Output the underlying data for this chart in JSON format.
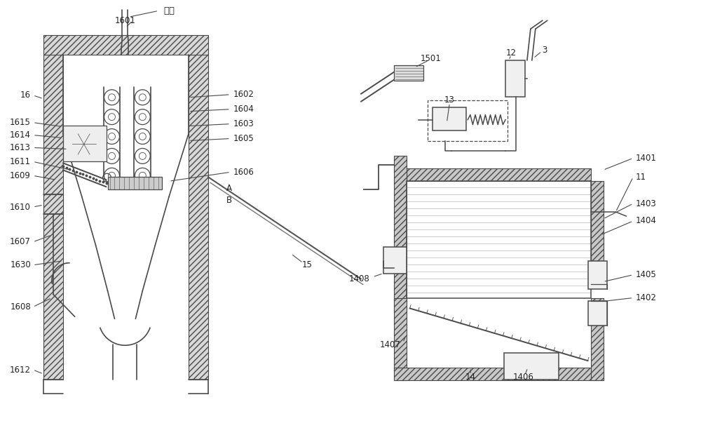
{
  "bg_color": "#ffffff",
  "line_color": "#4a4a4a",
  "fig_width": 10.0,
  "fig_height": 6.3,
  "labels": {
    "mu_bang": "木棒",
    "1601": "1601",
    "1602": "1602",
    "1603": "1603",
    "1604": "1604",
    "1605": "1605",
    "1606": "1606",
    "1607": "1607",
    "1608": "1608",
    "1609": "1609",
    "1610": "1610",
    "1611": "1611",
    "1612": "1612",
    "1613": "1613",
    "1614": "1614",
    "1615": "1615",
    "1630": "1630",
    "16": "16",
    "A": "A",
    "B": "B",
    "15": "15",
    "1501": "1501",
    "12": "12",
    "3": "3",
    "13": "13",
    "11": "11",
    "1401": "1401",
    "1402": "1402",
    "1403": "1403",
    "1404": "1404",
    "1405": "1405",
    "1406": "1406",
    "1407": "1407",
    "1408": "1408",
    "14": "14"
  }
}
